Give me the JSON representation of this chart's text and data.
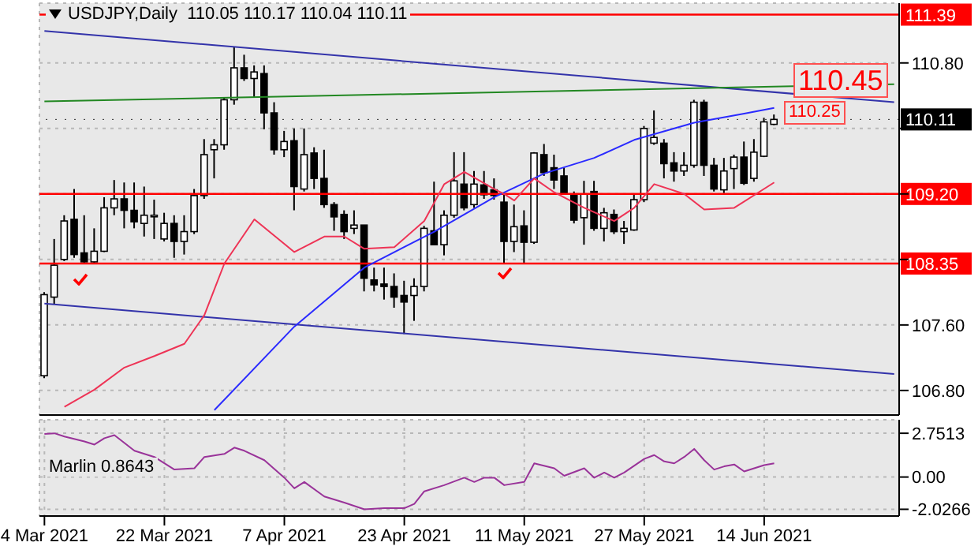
{
  "chart_data": [
    {
      "type": "candlestick",
      "title": "USDJPY,Daily  110.05 110.17 110.04 110.11",
      "ohlc": [
        [
          106.98,
          108.0,
          106.95,
          107.97
        ],
        [
          107.94,
          108.65,
          107.85,
          108.33
        ],
        [
          108.4,
          108.94,
          108.38,
          108.87
        ],
        [
          108.89,
          109.26,
          108.42,
          108.46
        ],
        [
          108.48,
          108.94,
          108.36,
          108.37
        ],
        [
          108.37,
          108.78,
          108.36,
          108.5
        ],
        [
          108.5,
          109.16,
          108.49,
          109.03
        ],
        [
          109.03,
          109.37,
          108.94,
          109.14
        ],
        [
          109.14,
          109.34,
          108.78,
          109.0
        ],
        [
          109.0,
          109.34,
          108.78,
          108.86
        ],
        [
          108.84,
          109.29,
          108.68,
          108.94
        ],
        [
          108.93,
          109.13,
          108.65,
          108.94
        ],
        [
          108.65,
          108.97,
          108.62,
          108.84
        ],
        [
          108.84,
          108.94,
          108.42,
          108.62
        ],
        [
          108.62,
          108.94,
          108.46,
          108.74
        ],
        [
          108.74,
          109.26,
          108.71,
          109.18
        ],
        [
          109.18,
          109.87,
          109.14,
          109.68
        ],
        [
          109.74,
          109.87,
          109.39,
          109.8
        ],
        [
          109.8,
          110.38,
          109.74,
          110.35
        ],
        [
          110.35,
          111.0,
          110.29,
          110.74
        ],
        [
          110.74,
          110.9,
          110.58,
          110.61
        ],
        [
          110.61,
          110.77,
          110.38,
          110.69
        ],
        [
          110.67,
          110.77,
          109.99,
          110.19
        ],
        [
          110.19,
          110.32,
          109.68,
          109.74
        ],
        [
          109.74,
          109.97,
          109.65,
          109.84
        ],
        [
          109.85,
          110.0,
          109.0,
          109.29
        ],
        [
          109.26,
          110.0,
          109.23,
          109.68
        ],
        [
          109.7,
          109.77,
          109.26,
          109.39
        ],
        [
          109.39,
          109.74,
          109.03,
          109.07
        ],
        [
          109.07,
          109.1,
          108.75,
          108.92
        ],
        [
          108.95,
          109.0,
          108.65,
          108.74
        ],
        [
          108.78,
          109.0,
          108.71,
          108.82
        ],
        [
          108.82,
          108.82,
          108.01,
          108.17
        ],
        [
          108.15,
          108.3,
          108.01,
          108.09
        ],
        [
          108.1,
          108.3,
          107.91,
          108.07
        ],
        [
          108.07,
          108.23,
          107.81,
          107.94
        ],
        [
          107.96,
          108.14,
          107.49,
          107.88
        ],
        [
          107.96,
          108.17,
          107.65,
          108.07
        ],
        [
          108.07,
          108.81,
          108.01,
          108.78
        ],
        [
          108.75,
          109.35,
          108.58,
          108.58
        ],
        [
          108.58,
          109.0,
          108.45,
          108.94
        ],
        [
          108.94,
          109.71,
          108.91,
          109.36
        ],
        [
          109.32,
          109.71,
          109.0,
          109.03
        ],
        [
          109.07,
          109.48,
          109.03,
          109.32
        ],
        [
          109.31,
          109.48,
          109.14,
          109.19
        ],
        [
          109.25,
          109.39,
          109.13,
          109.18
        ],
        [
          109.1,
          109.19,
          108.36,
          108.62
        ],
        [
          108.62,
          109.07,
          108.49,
          108.8
        ],
        [
          108.81,
          109.0,
          108.36,
          108.61
        ],
        [
          108.61,
          109.71,
          108.59,
          109.7
        ],
        [
          109.68,
          109.81,
          109.42,
          109.46
        ],
        [
          109.52,
          109.68,
          109.26,
          109.37
        ],
        [
          109.42,
          109.52,
          109.2,
          109.2
        ],
        [
          109.2,
          109.23,
          108.84,
          108.88
        ],
        [
          108.91,
          109.36,
          108.58,
          109.2
        ],
        [
          109.23,
          109.36,
          108.75,
          108.78
        ],
        [
          108.78,
          109.03,
          108.62,
          108.97
        ],
        [
          108.95,
          109.01,
          108.71,
          108.74
        ],
        [
          108.74,
          108.87,
          108.59,
          108.78
        ],
        [
          108.76,
          109.19,
          108.75,
          109.13
        ],
        [
          109.13,
          110.03,
          109.1,
          110.0
        ],
        [
          109.82,
          110.22,
          109.8,
          109.89
        ],
        [
          109.82,
          109.87,
          109.39,
          109.57
        ],
        [
          109.58,
          109.71,
          109.35,
          109.48
        ],
        [
          109.48,
          109.71,
          109.42,
          109.55
        ],
        [
          109.55,
          110.35,
          109.52,
          110.32
        ],
        [
          110.32,
          110.35,
          109.42,
          109.55
        ],
        [
          109.55,
          109.64,
          109.23,
          109.26
        ],
        [
          109.25,
          109.64,
          109.21,
          109.48
        ],
        [
          109.51,
          109.68,
          109.26,
          109.65
        ],
        [
          109.65,
          109.84,
          109.31,
          109.33
        ],
        [
          109.39,
          109.87,
          109.35,
          109.71
        ],
        [
          109.66,
          110.13,
          109.65,
          110.08
        ],
        [
          110.05,
          110.17,
          110.04,
          110.11
        ],
        null,
        null,
        null,
        null,
        null,
        null,
        null,
        null,
        null,
        null,
        null,
        null
      ],
      "series": [
        {
          "type": "line",
          "color": "#3333aa",
          "values": [
            111.19,
            null,
            null,
            null,
            null,
            null,
            null,
            null,
            null,
            null,
            null,
            null,
            null,
            null,
            null,
            null,
            null,
            null,
            null,
            null,
            null,
            null,
            null,
            null,
            null,
            null,
            null,
            null,
            null,
            null,
            null,
            null,
            null,
            null,
            null,
            null,
            null,
            null,
            null,
            null,
            null,
            null,
            null,
            null,
            null,
            null,
            null,
            null,
            null,
            null,
            null,
            null,
            null,
            null,
            null,
            null,
            null,
            null,
            null,
            null,
            null,
            null,
            null,
            null,
            null,
            null,
            null,
            null,
            null,
            null,
            null,
            null,
            null,
            null,
            null,
            null,
            null,
            null,
            null,
            null,
            null,
            null,
            null,
            null,
            null,
            110.32
          ]
        },
        {
          "type": "line",
          "color": "#3333aa",
          "values": [
            107.86,
            null,
            null,
            null,
            null,
            null,
            null,
            null,
            null,
            null,
            null,
            null,
            null,
            null,
            null,
            null,
            null,
            null,
            null,
            null,
            null,
            null,
            null,
            null,
            null,
            null,
            null,
            null,
            null,
            null,
            null,
            null,
            null,
            null,
            null,
            null,
            null,
            null,
            null,
            null,
            null,
            null,
            null,
            null,
            null,
            null,
            null,
            null,
            null,
            null,
            null,
            null,
            null,
            null,
            null,
            null,
            null,
            null,
            null,
            null,
            null,
            null,
            null,
            null,
            null,
            null,
            null,
            null,
            null,
            null,
            null,
            null,
            null,
            null,
            null,
            null,
            null,
            null,
            null,
            null,
            null,
            null,
            null,
            null,
            null,
            107.0
          ]
        },
        {
          "type": "line",
          "color": "#228822",
          "values": [
            110.33,
            null,
            null,
            null,
            null,
            null,
            null,
            null,
            null,
            null,
            null,
            null,
            null,
            null,
            null,
            null,
            null,
            null,
            null,
            null,
            null,
            null,
            null,
            null,
            null,
            null,
            null,
            null,
            null,
            null,
            null,
            null,
            null,
            null,
            null,
            null,
            null,
            null,
            null,
            null,
            null,
            null,
            null,
            null,
            null,
            null,
            null,
            null,
            null,
            null,
            null,
            null,
            null,
            null,
            null,
            null,
            null,
            null,
            null,
            null,
            null,
            null,
            null,
            null,
            null,
            null,
            null,
            null,
            null,
            null,
            null,
            null,
            null,
            null,
            null,
            null,
            null,
            null,
            null,
            null,
            null,
            null,
            null,
            null,
            null,
            110.54
          ]
        },
        {
          "type": "line",
          "color": "#2a2aff",
          "values": [
            null,
            null,
            null,
            null,
            null,
            null,
            null,
            null,
            null,
            null,
            null,
            null,
            null,
            null,
            null,
            null,
            null,
            106.56,
            null,
            null,
            null,
            null,
            null,
            null,
            null,
            107.58,
            null,
            null,
            null,
            null,
            null,
            null,
            108.3,
            null,
            null,
            null,
            null,
            null,
            null,
            108.74,
            null,
            null,
            null,
            null,
            null,
            109.16,
            null,
            null,
            null,
            null,
            109.45,
            null,
            null,
            null,
            null,
            109.64,
            null,
            null,
            null,
            109.86,
            null,
            null,
            null,
            null,
            null,
            110.07,
            null,
            null,
            null,
            null,
            110.18,
            null,
            null,
            110.25,
            null,
            null,
            null,
            null,
            null,
            null,
            null,
            null,
            null,
            null,
            null,
            null
          ]
        },
        {
          "type": "line",
          "color": "#ee3355",
          "values": [
            null,
            null,
            106.6,
            null,
            null,
            106.81,
            null,
            null,
            107.08,
            null,
            null,
            107.22,
            null,
            null,
            107.37,
            null,
            107.72,
            null,
            108.35,
            null,
            null,
            108.89,
            null,
            null,
            null,
            108.49,
            null,
            null,
            108.68,
            null,
            108.68,
            null,
            108.53,
            null,
            null,
            108.55,
            null,
            null,
            108.87,
            null,
            109.32,
            null,
            109.47,
            null,
            null,
            109.26,
            109.2,
            109.12,
            null,
            109.39,
            null,
            109.22,
            null,
            null,
            109.03,
            null,
            null,
            108.87,
            null,
            109.03,
            null,
            109.32,
            null,
            null,
            109.2,
            null,
            109.01,
            null,
            null,
            109.03,
            null,
            null,
            null,
            109.34,
            null,
            null,
            null,
            null,
            null,
            null,
            null,
            null,
            null,
            null,
            null,
            null
          ]
        }
      ],
      "ref_lines": [
        {
          "axis": "y",
          "value": 111.39,
          "label": "111.39",
          "color": "#ff0000"
        },
        {
          "axis": "y",
          "value": 109.2,
          "label": "109.20",
          "color": "#ff0000"
        },
        {
          "axis": "y",
          "value": 108.35,
          "label": "108.35",
          "color": "#ff0000"
        },
        {
          "axis": "y",
          "value": 110.11,
          "label": "110.11",
          "color": "#000000"
        }
      ],
      "annotations": [
        "110.45",
        "110.25"
      ],
      "ylim": [
        106.5,
        111.53
      ],
      "yticks": [
        {
          "value": 106.8,
          "label": "106.80"
        },
        {
          "value": 107.6,
          "label": "107.60"
        },
        {
          "value": 108.4,
          "label": null
        },
        {
          "value": 109.2,
          "label": null
        },
        {
          "value": 110.0,
          "label": null
        },
        {
          "value": 110.8,
          "label": "110.80"
        }
      ],
      "grid": true,
      "tick_labels": "y"
    },
    {
      "type": "line",
      "title": "Marlin 0.8643",
      "categories": [
        "4 Mar 2021",
        null,
        null,
        null,
        null,
        null,
        null,
        null,
        null,
        null,
        null,
        null,
        "22 Mar 2021",
        null,
        null,
        null,
        null,
        null,
        null,
        null,
        null,
        null,
        null,
        null,
        "7 Apr 2021",
        null,
        null,
        null,
        null,
        null,
        null,
        null,
        null,
        null,
        null,
        null,
        "23 Apr 2021",
        null,
        null,
        null,
        null,
        null,
        null,
        null,
        null,
        null,
        null,
        null,
        "11 May 2021",
        null,
        null,
        null,
        null,
        null,
        null,
        null,
        null,
        null,
        null,
        null,
        "27 May 2021",
        null,
        null,
        null,
        null,
        null,
        null,
        null,
        null,
        null,
        null,
        null,
        "14 Jun 2021",
        null,
        null,
        null,
        null,
        null,
        null,
        null,
        null,
        null,
        null,
        null,
        null,
        null
      ],
      "series": [
        {
          "color": "#993399",
          "values": [
            2.71,
            2.75,
            2.55,
            null,
            2.24,
            2.04,
            2.44,
            2.63,
            null,
            1.65,
            null,
            1.26,
            null,
            0.47,
            null,
            0.55,
            1.26,
            null,
            1.45,
            1.85,
            1.65,
            null,
            1.06,
            null,
            -0.04,
            -0.71,
            -0.31,
            null,
            -1.22,
            null,
            -1.61,
            null,
            -2.0266,
            null,
            -1.96,
            null,
            -1.96,
            -1.69,
            -0.9,
            null,
            -0.51,
            null,
            -0.04,
            -0.31,
            -0.04,
            -0.04,
            -0.51,
            null,
            -0.31,
            0.86,
            null,
            0.55,
            0.08,
            null,
            0.55,
            -0.04,
            0.28,
            -0.04,
            0.28,
            null,
            1.14,
            1.38,
            0.98,
            0.86,
            1.26,
            1.77,
            1.06,
            0.47,
            0.67,
            0.79,
            0.35,
            null,
            0.75,
            0.8643,
            null,
            null,
            null,
            null,
            null,
            null,
            null,
            null,
            null,
            null,
            null,
            null
          ]
        }
      ],
      "ylim": [
        -2.45,
        3.6
      ],
      "yticks": [
        -2.0266,
        {
          "value": 0,
          "label": "0.00"
        },
        2.7513
      ],
      "grid": true
    }
  ]
}
